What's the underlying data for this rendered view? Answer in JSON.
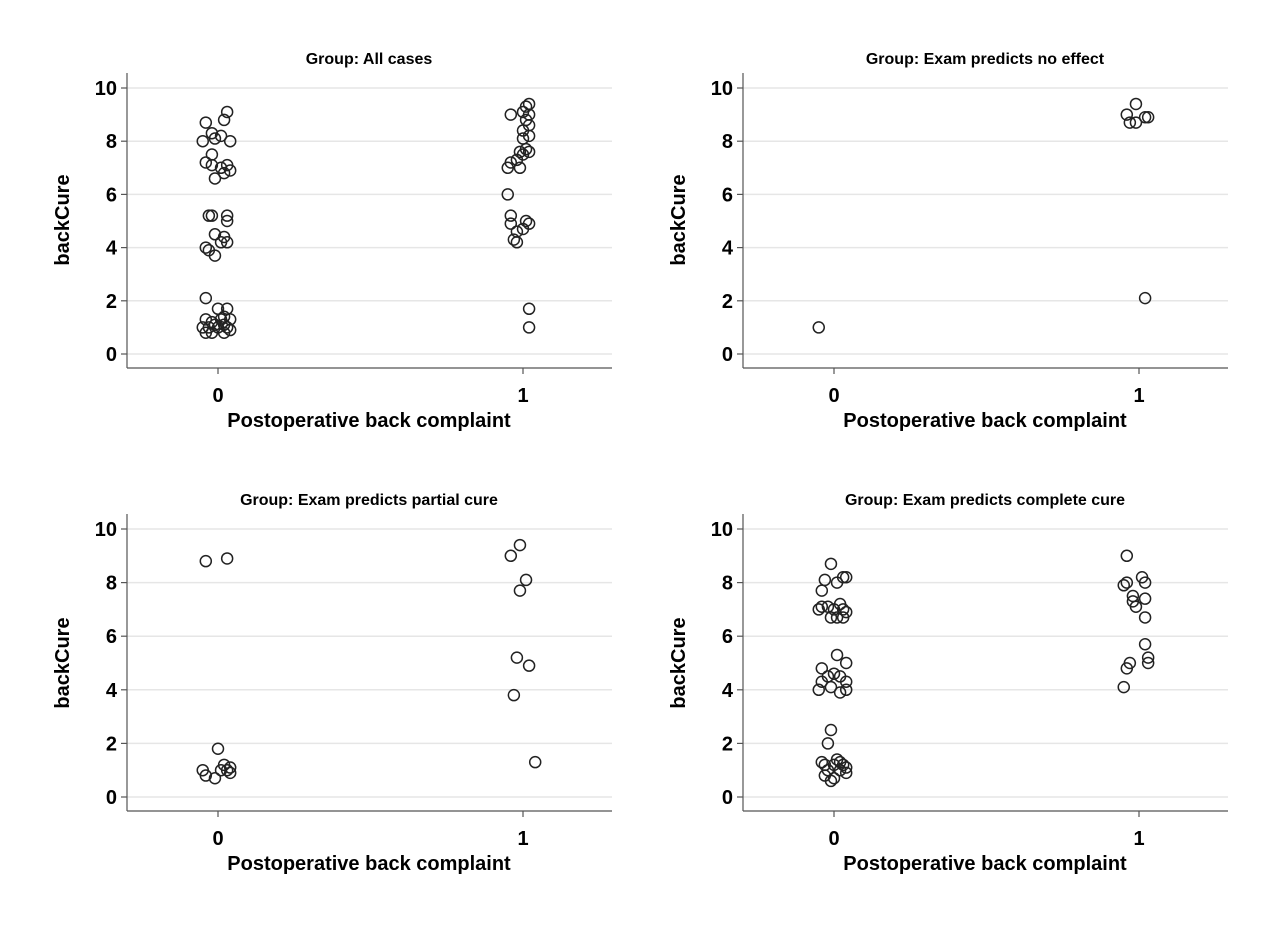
{
  "chart_data": [
    {
      "type": "scatter",
      "title": "Group: All cases",
      "xlabel": "Postoperative back complaint",
      "ylabel": "backCure",
      "x_ticks": [
        "0",
        "1"
      ],
      "y_ticks": [
        "0",
        "2",
        "4",
        "6",
        "8",
        "10"
      ],
      "xlim": [
        -0.3,
        1.3
      ],
      "ylim": [
        -0.5,
        10.6
      ],
      "grid": true,
      "points": [
        {
          "x": -0.04,
          "y": 8.7
        },
        {
          "x": 0.02,
          "y": 8.8
        },
        {
          "x": 0.03,
          "y": 9.1
        },
        {
          "x": -0.02,
          "y": 8.3
        },
        {
          "x": 0.01,
          "y": 8.2
        },
        {
          "x": -0.05,
          "y": 8.0
        },
        {
          "x": 0.04,
          "y": 8.0
        },
        {
          "x": -0.01,
          "y": 8.1
        },
        {
          "x": -0.02,
          "y": 7.5
        },
        {
          "x": -0.04,
          "y": 7.2
        },
        {
          "x": -0.02,
          "y": 7.1
        },
        {
          "x": 0.01,
          "y": 7.0
        },
        {
          "x": 0.03,
          "y": 7.1
        },
        {
          "x": 0.04,
          "y": 6.9
        },
        {
          "x": -0.01,
          "y": 6.6
        },
        {
          "x": 0.02,
          "y": 6.8
        },
        {
          "x": -0.03,
          "y": 5.2
        },
        {
          "x": -0.02,
          "y": 5.2
        },
        {
          "x": 0.03,
          "y": 5.2
        },
        {
          "x": 0.03,
          "y": 5.0
        },
        {
          "x": -0.01,
          "y": 4.5
        },
        {
          "x": 0.02,
          "y": 4.4
        },
        {
          "x": 0.01,
          "y": 4.2
        },
        {
          "x": 0.03,
          "y": 4.2
        },
        {
          "x": -0.04,
          "y": 4.0
        },
        {
          "x": -0.03,
          "y": 3.9
        },
        {
          "x": -0.01,
          "y": 3.7
        },
        {
          "x": -0.04,
          "y": 2.1
        },
        {
          "x": 0.0,
          "y": 1.7
        },
        {
          "x": 0.03,
          "y": 1.7
        },
        {
          "x": -0.04,
          "y": 1.3
        },
        {
          "x": -0.02,
          "y": 1.2
        },
        {
          "x": 0.01,
          "y": 1.3
        },
        {
          "x": 0.02,
          "y": 1.4
        },
        {
          "x": 0.04,
          "y": 1.3
        },
        {
          "x": -0.05,
          "y": 1.0
        },
        {
          "x": -0.03,
          "y": 1.0
        },
        {
          "x": -0.01,
          "y": 1.1
        },
        {
          "x": 0.0,
          "y": 1.0
        },
        {
          "x": 0.02,
          "y": 1.1
        },
        {
          "x": 0.03,
          "y": 1.0
        },
        {
          "x": 0.04,
          "y": 0.9
        },
        {
          "x": -0.04,
          "y": 0.8
        },
        {
          "x": -0.02,
          "y": 0.8
        },
        {
          "x": 0.02,
          "y": 0.8
        },
        {
          "x": 1.02,
          "y": 9.4
        },
        {
          "x": 1.01,
          "y": 9.3
        },
        {
          "x": 0.96,
          "y": 9.0
        },
        {
          "x": 1.0,
          "y": 9.1
        },
        {
          "x": 1.02,
          "y": 9.0
        },
        {
          "x": 1.01,
          "y": 8.8
        },
        {
          "x": 1.02,
          "y": 8.6
        },
        {
          "x": 1.0,
          "y": 8.4
        },
        {
          "x": 1.02,
          "y": 8.2
        },
        {
          "x": 1.0,
          "y": 8.1
        },
        {
          "x": 1.01,
          "y": 7.7
        },
        {
          "x": 0.99,
          "y": 7.6
        },
        {
          "x": 1.02,
          "y": 7.6
        },
        {
          "x": 1.0,
          "y": 7.5
        },
        {
          "x": 0.98,
          "y": 7.3
        },
        {
          "x": 0.96,
          "y": 7.2
        },
        {
          "x": 0.99,
          "y": 7.0
        },
        {
          "x": 0.95,
          "y": 7.0
        },
        {
          "x": 0.95,
          "y": 6.0
        },
        {
          "x": 0.96,
          "y": 5.2
        },
        {
          "x": 1.01,
          "y": 5.0
        },
        {
          "x": 1.02,
          "y": 4.9
        },
        {
          "x": 0.96,
          "y": 4.9
        },
        {
          "x": 1.0,
          "y": 4.7
        },
        {
          "x": 0.98,
          "y": 4.6
        },
        {
          "x": 0.97,
          "y": 4.3
        },
        {
          "x": 0.98,
          "y": 4.2
        },
        {
          "x": 1.02,
          "y": 1.7
        },
        {
          "x": 1.02,
          "y": 1.0
        }
      ]
    },
    {
      "type": "scatter",
      "title": "Group: Exam predicts no effect",
      "xlabel": "Postoperative back complaint",
      "ylabel": "backCure",
      "x_ticks": [
        "0",
        "1"
      ],
      "y_ticks": [
        "0",
        "2",
        "4",
        "6",
        "8",
        "10"
      ],
      "xlim": [
        -0.3,
        1.3
      ],
      "ylim": [
        -0.5,
        10.6
      ],
      "grid": true,
      "points": [
        {
          "x": -0.05,
          "y": 1.0
        },
        {
          "x": 0.99,
          "y": 9.4
        },
        {
          "x": 0.96,
          "y": 9.0
        },
        {
          "x": 1.02,
          "y": 8.9
        },
        {
          "x": 1.03,
          "y": 8.9
        },
        {
          "x": 0.97,
          "y": 8.7
        },
        {
          "x": 0.99,
          "y": 8.7
        },
        {
          "x": 1.02,
          "y": 2.1
        }
      ]
    },
    {
      "type": "scatter",
      "title": "Group: Exam predicts partial cure",
      "xlabel": "Postoperative back complaint",
      "ylabel": "backCure",
      "x_ticks": [
        "0",
        "1"
      ],
      "y_ticks": [
        "0",
        "2",
        "4",
        "6",
        "8",
        "10"
      ],
      "xlim": [
        -0.3,
        1.3
      ],
      "ylim": [
        -0.5,
        10.6
      ],
      "grid": true,
      "points": [
        {
          "x": -0.04,
          "y": 8.8
        },
        {
          "x": 0.03,
          "y": 8.9
        },
        {
          "x": 0.0,
          "y": 1.8
        },
        {
          "x": -0.05,
          "y": 1.0
        },
        {
          "x": 0.02,
          "y": 1.2
        },
        {
          "x": 0.04,
          "y": 1.1
        },
        {
          "x": 0.01,
          "y": 1.0
        },
        {
          "x": 0.03,
          "y": 1.0
        },
        {
          "x": 0.04,
          "y": 0.9
        },
        {
          "x": -0.04,
          "y": 0.8
        },
        {
          "x": -0.01,
          "y": 0.7
        },
        {
          "x": 0.99,
          "y": 9.4
        },
        {
          "x": 0.96,
          "y": 9.0
        },
        {
          "x": 1.01,
          "y": 8.1
        },
        {
          "x": 0.99,
          "y": 7.7
        },
        {
          "x": 0.98,
          "y": 5.2
        },
        {
          "x": 1.02,
          "y": 4.9
        },
        {
          "x": 0.97,
          "y": 3.8
        },
        {
          "x": 1.04,
          "y": 1.3
        }
      ]
    },
    {
      "type": "scatter",
      "title": "Group: Exam predicts complete cure",
      "xlabel": "Postoperative back complaint",
      "ylabel": "backCure",
      "x_ticks": [
        "0",
        "1"
      ],
      "y_ticks": [
        "0",
        "2",
        "4",
        "6",
        "8",
        "10"
      ],
      "xlim": [
        -0.3,
        1.3
      ],
      "ylim": [
        -0.5,
        10.6
      ],
      "grid": true,
      "points": [
        {
          "x": -0.01,
          "y": 8.7
        },
        {
          "x": -0.03,
          "y": 8.1
        },
        {
          "x": 0.03,
          "y": 8.2
        },
        {
          "x": 0.04,
          "y": 8.2
        },
        {
          "x": 0.01,
          "y": 8.0
        },
        {
          "x": -0.04,
          "y": 7.7
        },
        {
          "x": -0.04,
          "y": 7.1
        },
        {
          "x": -0.05,
          "y": 7.0
        },
        {
          "x": -0.02,
          "y": 7.1
        },
        {
          "x": 0.0,
          "y": 7.0
        },
        {
          "x": 0.02,
          "y": 7.2
        },
        {
          "x": 0.03,
          "y": 7.0
        },
        {
          "x": 0.04,
          "y": 6.9
        },
        {
          "x": -0.01,
          "y": 6.7
        },
        {
          "x": 0.01,
          "y": 6.7
        },
        {
          "x": 0.03,
          "y": 6.7
        },
        {
          "x": 0.01,
          "y": 5.3
        },
        {
          "x": 0.04,
          "y": 5.0
        },
        {
          "x": -0.04,
          "y": 4.8
        },
        {
          "x": 0.0,
          "y": 4.6
        },
        {
          "x": -0.02,
          "y": 4.5
        },
        {
          "x": 0.02,
          "y": 4.5
        },
        {
          "x": -0.04,
          "y": 4.3
        },
        {
          "x": 0.04,
          "y": 4.3
        },
        {
          "x": -0.05,
          "y": 4.0
        },
        {
          "x": -0.01,
          "y": 4.1
        },
        {
          "x": 0.04,
          "y": 4.0
        },
        {
          "x": 0.02,
          "y": 3.9
        },
        {
          "x": -0.01,
          "y": 2.5
        },
        {
          "x": -0.02,
          "y": 2.0
        },
        {
          "x": 0.01,
          "y": 1.4
        },
        {
          "x": 0.02,
          "y": 1.3
        },
        {
          "x": -0.04,
          "y": 1.3
        },
        {
          "x": -0.03,
          "y": 1.2
        },
        {
          "x": 0.0,
          "y": 1.2
        },
        {
          "x": 0.03,
          "y": 1.2
        },
        {
          "x": 0.04,
          "y": 1.1
        },
        {
          "x": -0.02,
          "y": 1.0
        },
        {
          "x": 0.02,
          "y": 1.0
        },
        {
          "x": 0.04,
          "y": 0.9
        },
        {
          "x": -0.03,
          "y": 0.8
        },
        {
          "x": 0.0,
          "y": 0.7
        },
        {
          "x": -0.01,
          "y": 0.6
        },
        {
          "x": 0.96,
          "y": 9.0
        },
        {
          "x": 1.01,
          "y": 8.2
        },
        {
          "x": 1.02,
          "y": 8.0
        },
        {
          "x": 0.96,
          "y": 8.0
        },
        {
          "x": 0.95,
          "y": 7.9
        },
        {
          "x": 0.98,
          "y": 7.5
        },
        {
          "x": 1.02,
          "y": 7.4
        },
        {
          "x": 0.98,
          "y": 7.3
        },
        {
          "x": 0.99,
          "y": 7.1
        },
        {
          "x": 1.02,
          "y": 6.7
        },
        {
          "x": 1.02,
          "y": 5.7
        },
        {
          "x": 1.03,
          "y": 5.2
        },
        {
          "x": 1.03,
          "y": 5.0
        },
        {
          "x": 0.97,
          "y": 5.0
        },
        {
          "x": 0.96,
          "y": 4.8
        },
        {
          "x": 0.95,
          "y": 4.1
        }
      ]
    }
  ]
}
